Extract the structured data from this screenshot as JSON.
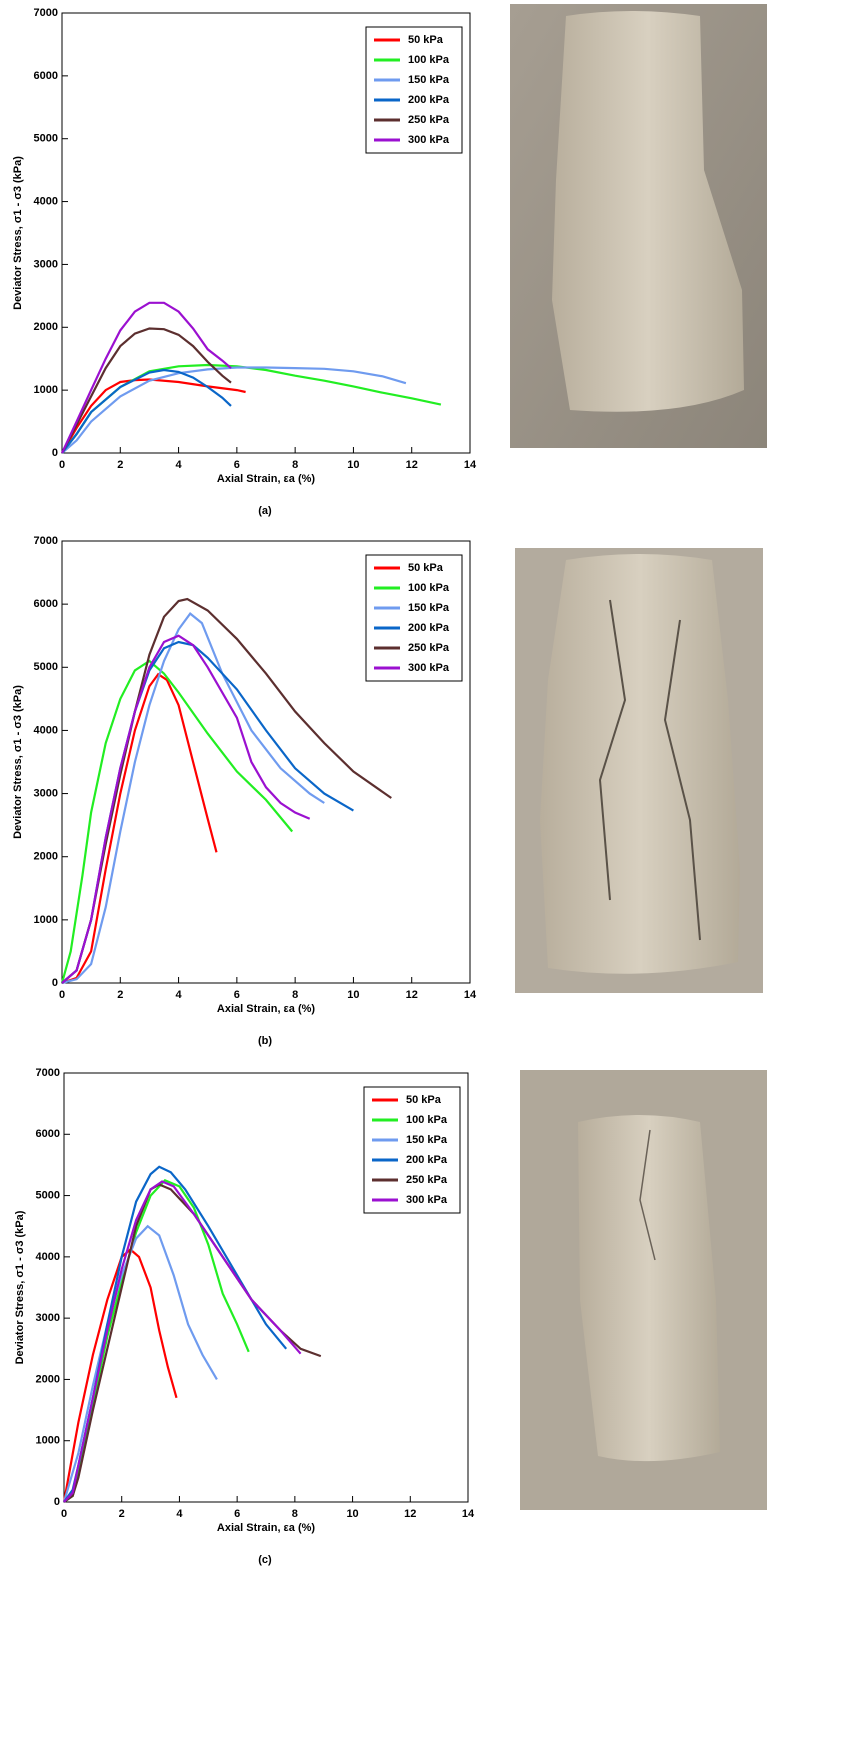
{
  "chart_data": [
    {
      "type": "line",
      "caption": "(a)",
      "xlabel": "Axial Strain, εa (%)",
      "ylabel": "Deviator Stress, σ1 - σ3 (kPa)",
      "xlim": [
        0,
        14
      ],
      "xticks": [
        0,
        2,
        4,
        6,
        8,
        10,
        12,
        14
      ],
      "ylim": [
        0,
        7000
      ],
      "yticks": [
        0,
        1000,
        2000,
        3000,
        4000,
        5000,
        6000,
        7000
      ],
      "legend": "upper right",
      "series": [
        {
          "name": "50 kPa",
          "color": "#ff0000",
          "x": [
            0,
            0.5,
            1,
            1.5,
            2,
            2.5,
            3,
            4,
            5,
            6,
            6.3
          ],
          "values": [
            0,
            400,
            750,
            1000,
            1130,
            1160,
            1170,
            1130,
            1060,
            1000,
            970
          ]
        },
        {
          "name": "100 kPa",
          "color": "#22ee22",
          "x": [
            0,
            0.5,
            1,
            2,
            3,
            4,
            5,
            6,
            7,
            8,
            9,
            10,
            11,
            12,
            13
          ],
          "values": [
            0,
            300,
            650,
            1050,
            1300,
            1380,
            1400,
            1380,
            1320,
            1230,
            1150,
            1060,
            960,
            870,
            770
          ]
        },
        {
          "name": "150 kPa",
          "color": "#6f9bef",
          "x": [
            0,
            0.5,
            1,
            2,
            3,
            4,
            5,
            6,
            7,
            8,
            9,
            10,
            11,
            11.8
          ],
          "values": [
            0,
            200,
            500,
            900,
            1150,
            1270,
            1330,
            1360,
            1360,
            1350,
            1340,
            1300,
            1220,
            1110
          ]
        },
        {
          "name": "200 kPa",
          "color": "#0a66c8",
          "x": [
            0,
            0.5,
            1,
            2,
            3,
            3.5,
            4,
            4.5,
            5,
            5.5,
            5.8
          ],
          "values": [
            0,
            300,
            650,
            1050,
            1280,
            1320,
            1290,
            1200,
            1050,
            880,
            750
          ]
        },
        {
          "name": "250 kPa",
          "color": "#5c2f2f",
          "x": [
            0,
            0.5,
            1,
            1.5,
            2,
            2.5,
            3,
            3.5,
            4,
            4.5,
            5,
            5.5,
            5.8
          ],
          "values": [
            0,
            450,
            900,
            1350,
            1700,
            1900,
            1980,
            1970,
            1880,
            1700,
            1450,
            1230,
            1120
          ]
        },
        {
          "name": "300 kPa",
          "color": "#9b10d0",
          "x": [
            0,
            0.5,
            1,
            1.5,
            2,
            2.5,
            3,
            3.5,
            4,
            4.5,
            5,
            5.5,
            5.8
          ],
          "values": [
            0,
            500,
            1000,
            1500,
            1950,
            2250,
            2390,
            2390,
            2250,
            1980,
            1650,
            1470,
            1350
          ]
        }
      ]
    },
    {
      "type": "line",
      "caption": "(b)",
      "xlabel": "Axial Strain, εa (%)",
      "ylabel": "Deviator Stress, σ1 - σ3 (kPa)",
      "xlim": [
        0,
        14
      ],
      "xticks": [
        0,
        2,
        4,
        6,
        8,
        10,
        12,
        14
      ],
      "ylim": [
        0,
        7000
      ],
      "yticks": [
        0,
        1000,
        2000,
        3000,
        4000,
        5000,
        6000,
        7000
      ],
      "legend": "upper right",
      "series": [
        {
          "name": "50 kPa",
          "color": "#ff0000",
          "x": [
            0,
            0.5,
            1,
            1.5,
            2,
            2.5,
            3,
            3.3,
            3.6,
            4,
            4.5,
            5,
            5.3
          ],
          "values": [
            0,
            80,
            500,
            1800,
            3000,
            4000,
            4700,
            4890,
            4800,
            4400,
            3500,
            2600,
            2070
          ]
        },
        {
          "name": "100 kPa",
          "color": "#22ee22",
          "x": [
            0,
            0.3,
            0.7,
            1,
            1.5,
            2,
            2.5,
            3,
            3.5,
            4,
            5,
            6,
            7,
            7.9
          ],
          "values": [
            0,
            500,
            1700,
            2700,
            3800,
            4500,
            4950,
            5100,
            4900,
            4600,
            3950,
            3350,
            2900,
            2400
          ]
        },
        {
          "name": "150 kPa",
          "color": "#6f9bef",
          "x": [
            0,
            0.5,
            1,
            1.5,
            2,
            2.5,
            3,
            3.5,
            4,
            4.4,
            4.8,
            5.5,
            6.5,
            7.5,
            8.5,
            9
          ],
          "values": [
            0,
            60,
            300,
            1200,
            2400,
            3500,
            4400,
            5100,
            5600,
            5850,
            5700,
            4900,
            4000,
            3400,
            3000,
            2850
          ]
        },
        {
          "name": "200 kPa",
          "color": "#0a66c8",
          "x": [
            0,
            0.5,
            1,
            1.5,
            2,
            2.5,
            3,
            3.5,
            4,
            4.5,
            5,
            6,
            7,
            8,
            9,
            10
          ],
          "values": [
            0,
            200,
            1000,
            2300,
            3400,
            4300,
            4950,
            5300,
            5400,
            5350,
            5150,
            4650,
            4000,
            3400,
            3000,
            2730
          ]
        },
        {
          "name": "250 kPa",
          "color": "#5c2f2f",
          "x": [
            0,
            0.5,
            1,
            1.5,
            2,
            2.5,
            3,
            3.5,
            4,
            4.3,
            5,
            6,
            7,
            8,
            9,
            10,
            11.3
          ],
          "values": [
            0,
            200,
            1000,
            2200,
            3300,
            4300,
            5200,
            5800,
            6050,
            6080,
            5900,
            5450,
            4900,
            4300,
            3800,
            3350,
            2930
          ]
        },
        {
          "name": "300 kPa",
          "color": "#9b10d0",
          "x": [
            0,
            0.5,
            1,
            1.5,
            2,
            2.5,
            3,
            3.5,
            4,
            4.5,
            5,
            6,
            6.5,
            7,
            7.5,
            8,
            8.5
          ],
          "values": [
            0,
            200,
            1000,
            2300,
            3400,
            4300,
            5000,
            5400,
            5500,
            5350,
            5000,
            4200,
            3500,
            3100,
            2850,
            2700,
            2600
          ]
        }
      ]
    },
    {
      "type": "line",
      "caption": "(c)",
      "xlabel": "Axial Strain, εa (%)",
      "ylabel": "Deviator Stress, σ1 - σ3 (kPa)",
      "xlim": [
        0,
        14
      ],
      "xticks": [
        0,
        2,
        4,
        6,
        8,
        10,
        12,
        14
      ],
      "ylim": [
        0,
        7000
      ],
      "yticks": [
        0,
        1000,
        2000,
        3000,
        4000,
        5000,
        6000,
        7000
      ],
      "legend": "upper right",
      "series": [
        {
          "name": "50 kPa",
          "color": "#ff0000",
          "x": [
            0,
            0.5,
            1,
            1.5,
            2,
            2.3,
            2.6,
            3,
            3.3,
            3.6,
            3.9
          ],
          "values": [
            0,
            1300,
            2400,
            3300,
            4000,
            4120,
            4000,
            3500,
            2800,
            2200,
            1700
          ]
        },
        {
          "name": "100 kPa",
          "color": "#22ee22",
          "x": [
            0,
            0.3,
            0.5,
            1,
            1.5,
            2,
            2.5,
            3,
            3.5,
            4,
            4.5,
            5,
            5.5,
            6,
            6.4
          ],
          "values": [
            0,
            100,
            500,
            1600,
            2700,
            3600,
            4400,
            5000,
            5250,
            5150,
            4800,
            4200,
            3400,
            2900,
            2450
          ]
        },
        {
          "name": "150 kPa",
          "color": "#6f9bef",
          "x": [
            0,
            0.5,
            1,
            1.5,
            2,
            2.5,
            2.9,
            3.3,
            3.8,
            4.3,
            4.8,
            5.3
          ],
          "values": [
            0,
            800,
            1900,
            2900,
            3700,
            4300,
            4500,
            4350,
            3700,
            2900,
            2400,
            2000
          ]
        },
        {
          "name": "200 kPa",
          "color": "#0a66c8",
          "x": [
            0,
            0.3,
            0.5,
            1,
            1.5,
            2,
            2.5,
            3,
            3.3,
            3.7,
            4.2,
            5,
            6,
            7,
            7.7
          ],
          "values": [
            0,
            200,
            600,
            1700,
            2900,
            4000,
            4900,
            5350,
            5470,
            5380,
            5100,
            4500,
            3700,
            2900,
            2500
          ]
        },
        {
          "name": "250 kPa",
          "color": "#5c2f2f",
          "x": [
            0,
            0.3,
            0.5,
            1,
            1.5,
            2,
            2.5,
            3,
            3.3,
            3.7,
            4.5,
            5.5,
            6.5,
            7.5,
            8.2,
            8.9
          ],
          "values": [
            0,
            100,
            400,
            1500,
            2500,
            3500,
            4500,
            5100,
            5180,
            5100,
            4700,
            4000,
            3300,
            2800,
            2500,
            2380
          ]
        },
        {
          "name": "300 kPa",
          "color": "#9b10d0",
          "x": [
            0,
            0.3,
            0.5,
            1,
            1.5,
            2,
            2.5,
            3,
            3.4,
            3.8,
            4.5,
            5.5,
            6.5,
            7.5,
            8.2
          ],
          "values": [
            0,
            150,
            600,
            1700,
            2800,
            3800,
            4600,
            5100,
            5230,
            5150,
            4700,
            4000,
            3300,
            2800,
            2420
          ]
        }
      ]
    }
  ]
}
